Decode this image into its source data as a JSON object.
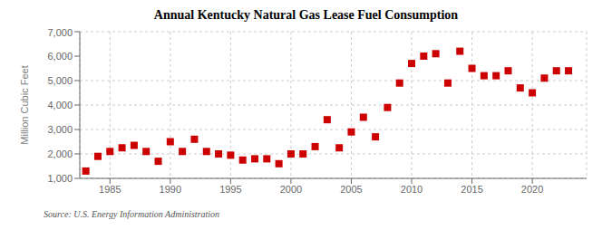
{
  "chart_data": {
    "type": "scatter",
    "title": "Annual Kentucky Natural Gas Lease Fuel Consumption",
    "ylabel": "Million Cubic Feet",
    "annotations": [
      "Source: U.S. Energy Information Administration"
    ],
    "color": "#cc0000",
    "marker": "square",
    "grid": true,
    "x": [
      1983,
      1984,
      1985,
      1986,
      1987,
      1988,
      1989,
      1990,
      1991,
      1992,
      1993,
      1994,
      1995,
      1996,
      1997,
      1998,
      1999,
      2000,
      2001,
      2002,
      2003,
      2004,
      2005,
      2006,
      2007,
      2008,
      2009,
      2010,
      2011,
      2012,
      2013,
      2014,
      2015,
      2016,
      2017,
      2018,
      2019,
      2020,
      2021,
      2022,
      2023
    ],
    "values": [
      1300,
      1900,
      2100,
      2250,
      2350,
      2100,
      1700,
      2500,
      2100,
      2600,
      2100,
      2000,
      1950,
      1750,
      1800,
      1800,
      1600,
      2000,
      2000,
      2300,
      3400,
      2250,
      2900,
      3500,
      2700,
      3900,
      4900,
      5700,
      6000,
      6100,
      4900,
      6200,
      5500,
      5200,
      5200,
      5400,
      4700,
      4500,
      5100,
      5400,
      5400
    ],
    "xlim": [
      1982.5,
      2024.5
    ],
    "xticks": [
      1985,
      1990,
      1995,
      2000,
      2005,
      2010,
      2015,
      2020
    ],
    "ylim": [
      1000,
      7000
    ],
    "yticks": [
      {
        "value": 1000,
        "label": "1,000"
      },
      {
        "value": 2000,
        "label": "2,000"
      },
      {
        "value": 3000,
        "label": "3,000"
      },
      {
        "value": 4000,
        "label": "4,000"
      },
      {
        "value": 5000,
        "label": "5,000"
      },
      {
        "value": 6000,
        "label": "6,000"
      },
      {
        "value": 7000,
        "label": "7,000"
      }
    ]
  }
}
